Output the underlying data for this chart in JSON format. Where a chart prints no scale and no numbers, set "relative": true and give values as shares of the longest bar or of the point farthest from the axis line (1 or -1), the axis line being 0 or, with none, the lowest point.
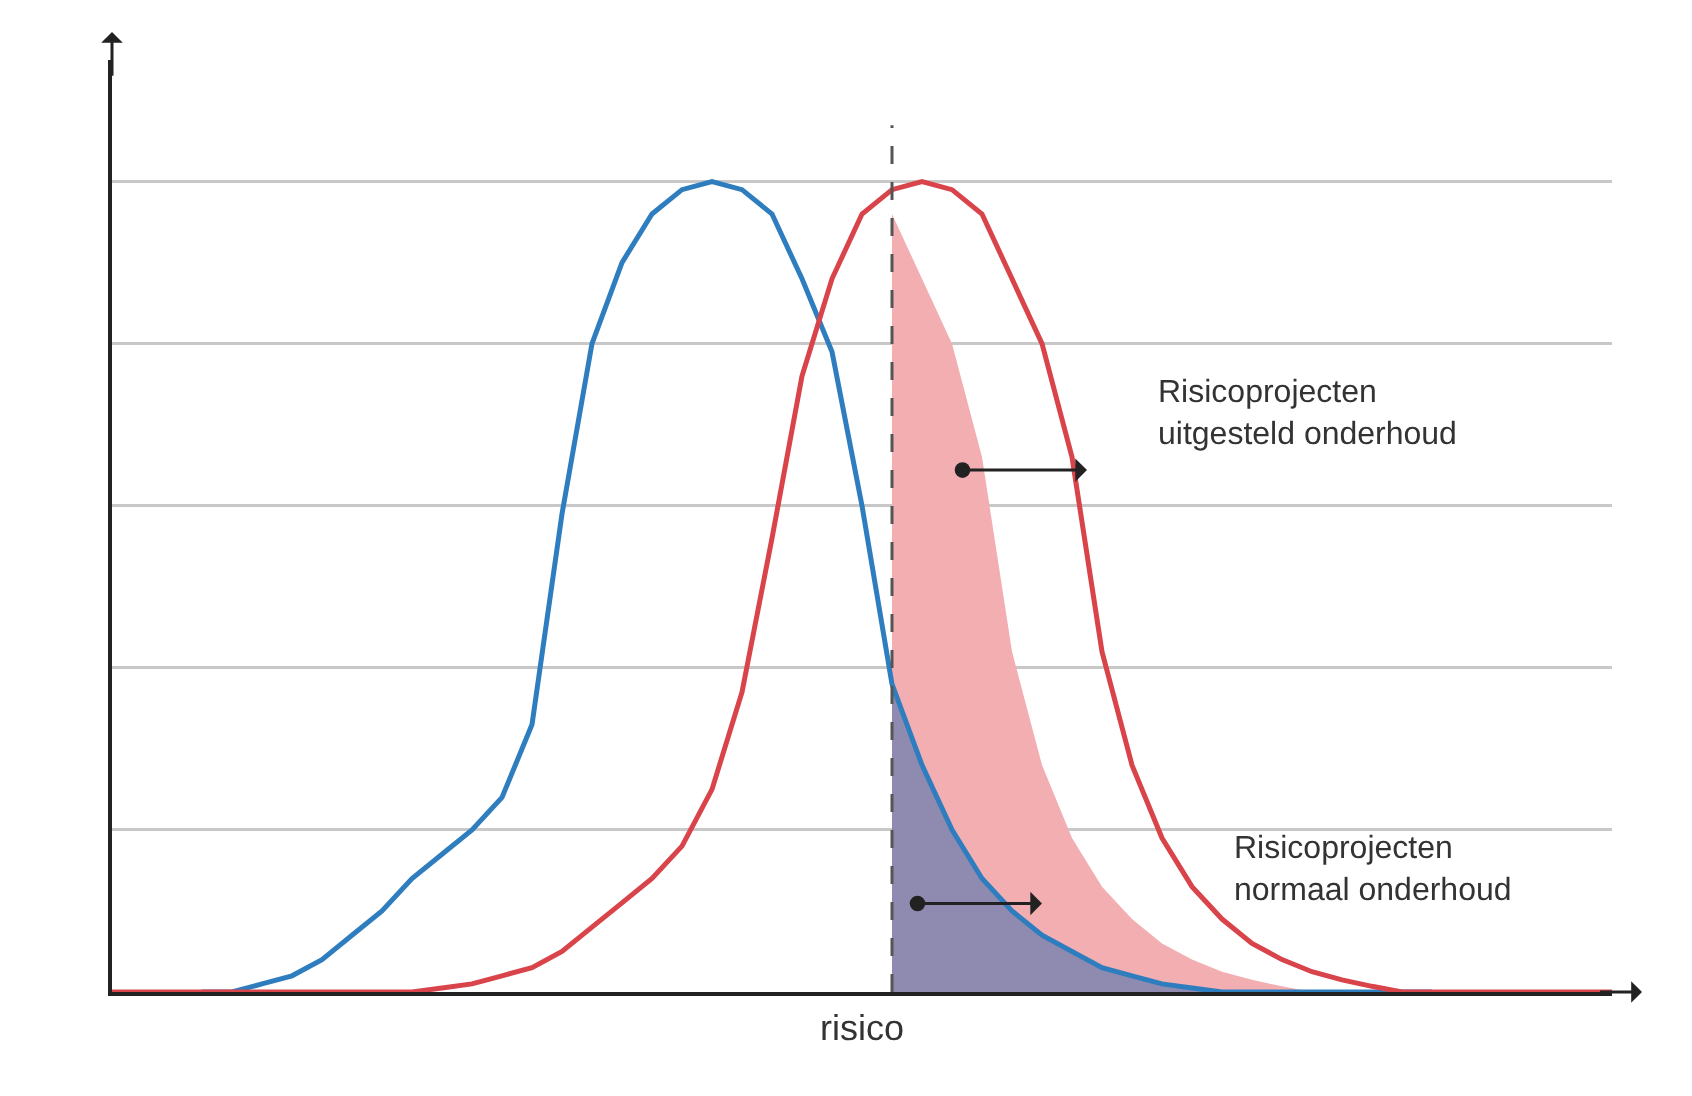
{
  "chart_data": {
    "type": "line",
    "relative": true,
    "xlabel": "risico",
    "grid": "y",
    "categories": [
      null,
      null,
      null,
      null,
      null,
      null,
      null,
      null,
      null,
      null,
      null,
      null,
      null,
      null,
      null,
      null,
      null,
      null,
      null,
      null,
      null,
      null,
      null,
      null,
      null,
      null,
      null,
      null,
      null,
      null,
      null,
      null,
      null,
      null,
      null,
      null,
      null,
      null,
      null,
      null,
      null,
      null,
      null,
      null,
      null,
      null,
      null,
      null,
      null,
      null,
      null
    ],
    "series": [
      {
        "type": "area",
        "color": "#f3aeb2",
        "values": [
          null,
          null,
          null,
          null,
          null,
          null,
          null,
          null,
          null,
          null,
          null,
          null,
          null,
          null,
          null,
          null,
          null,
          null,
          null,
          null,
          null,
          null,
          null,
          null,
          null,
          null,
          0.96,
          0.88,
          0.8,
          0.66,
          0.42,
          0.28,
          0.19,
          0.13,
          0.09,
          0.06,
          0.04,
          0.025,
          0.015,
          0.007,
          0,
          0,
          0,
          0,
          0,
          0,
          0,
          0,
          0,
          0,
          0
        ]
      },
      {
        "type": "area",
        "color": "#8f8bb0",
        "values": [
          null,
          null,
          null,
          null,
          null,
          null,
          null,
          null,
          null,
          null,
          null,
          null,
          null,
          null,
          null,
          null,
          null,
          null,
          null,
          null,
          null,
          null,
          null,
          null,
          null,
          null,
          0.38,
          0.28,
          0.2,
          0.14,
          0.1,
          0.07,
          0.05,
          0.03,
          0.02,
          0.01,
          0.005,
          0,
          0,
          0,
          0,
          0,
          0,
          0,
          0,
          0,
          0,
          0,
          0,
          0,
          0
        ]
      },
      {
        "color": "#2e7ebf",
        "values": [
          null,
          null,
          null,
          0,
          0,
          0.01,
          0.02,
          0.04,
          0.07,
          0.1,
          0.14,
          0.17,
          0.2,
          0.24,
          0.33,
          0.59,
          0.8,
          0.9,
          0.96,
          0.99,
          1,
          0.99,
          0.96,
          0.88,
          0.79,
          0.6,
          0.38,
          0.28,
          0.2,
          0.14,
          0.1,
          0.07,
          0.05,
          0.03,
          0.02,
          0.01,
          0.005,
          0,
          0,
          0,
          0,
          0,
          0,
          0,
          0,
          null,
          null,
          null,
          null,
          null,
          null
        ]
      },
      {
        "color": "#d9434a",
        "values": [
          0,
          0,
          0,
          0,
          0,
          0,
          0,
          0,
          0,
          0,
          0,
          0.005,
          0.01,
          0.02,
          0.03,
          0.05,
          0.08,
          0.11,
          0.14,
          0.18,
          0.25,
          0.37,
          0.56,
          0.76,
          0.88,
          0.96,
          0.99,
          1,
          0.99,
          0.96,
          0.88,
          0.8,
          0.66,
          0.42,
          0.28,
          0.19,
          0.13,
          0.09,
          0.06,
          0.04,
          0.025,
          0.015,
          0.007,
          0,
          0,
          0,
          0,
          0,
          0,
          0,
          0
        ]
      }
    ],
    "annotations": [
      "Risicoprojecten\nuitgesteld onderhoud",
      "Risicoprojecten\nnormaal onderhoud"
    ]
  }
}
